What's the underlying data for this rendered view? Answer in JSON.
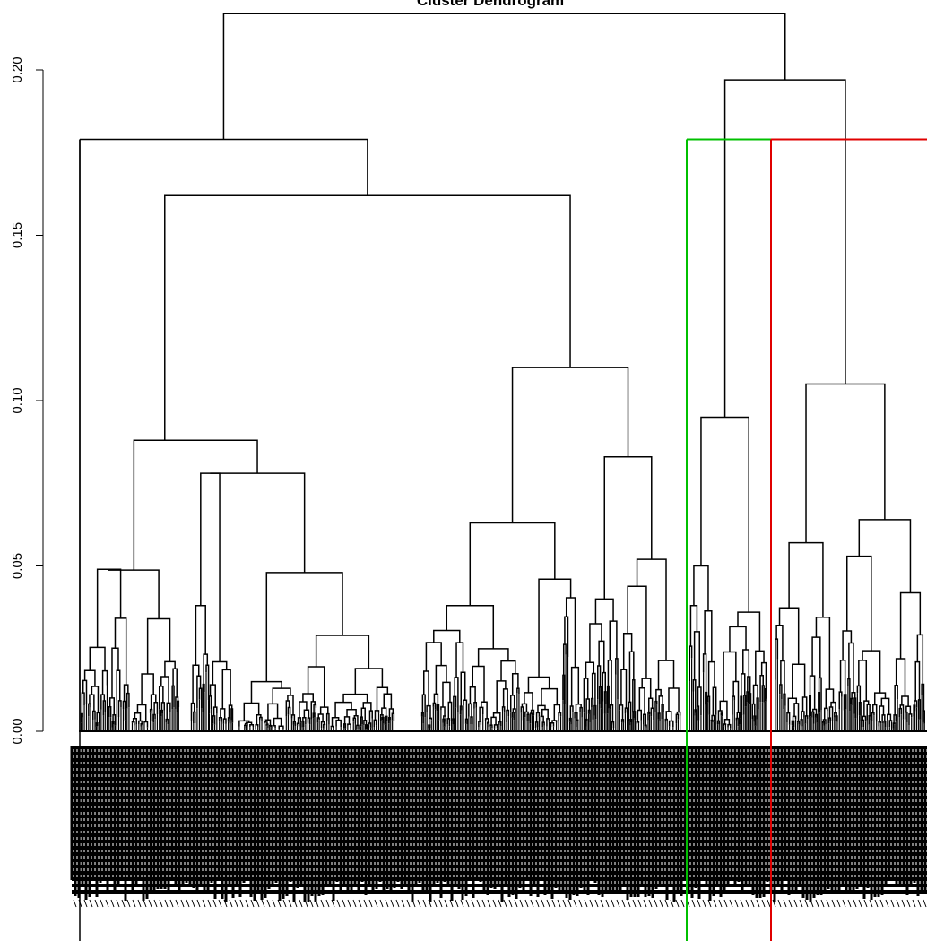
{
  "chart_data": {
    "type": "dendrogram",
    "title": "Cluster Dendrogram",
    "xlabel": "",
    "ylabel": "",
    "ylim": [
      0,
      0.22
    ],
    "y_ticks": [
      0.0,
      0.05,
      0.1,
      0.15,
      0.2
    ],
    "y_tick_labels": [
      "0.00",
      "0.05",
      "0.10",
      "0.15",
      "0.20"
    ],
    "grid": false,
    "colors": {
      "tree": "#000000",
      "cluster_a": "#00c000",
      "cluster_b": "#e00000"
    },
    "merge_heights": {
      "root": 0.217,
      "right_group": 0.197,
      "left_main": 0.162,
      "outlier_join": 0.179,
      "left_subgroup": 0.092,
      "middle_subgroup": 0.11,
      "green_cluster": 0.095,
      "red_cluster": 0.105
    },
    "highlighted_clusters": [
      {
        "color": "#00c000",
        "merge_height": 0.179
      },
      {
        "color": "#e00000",
        "merge_height": 0.179
      }
    ]
  }
}
